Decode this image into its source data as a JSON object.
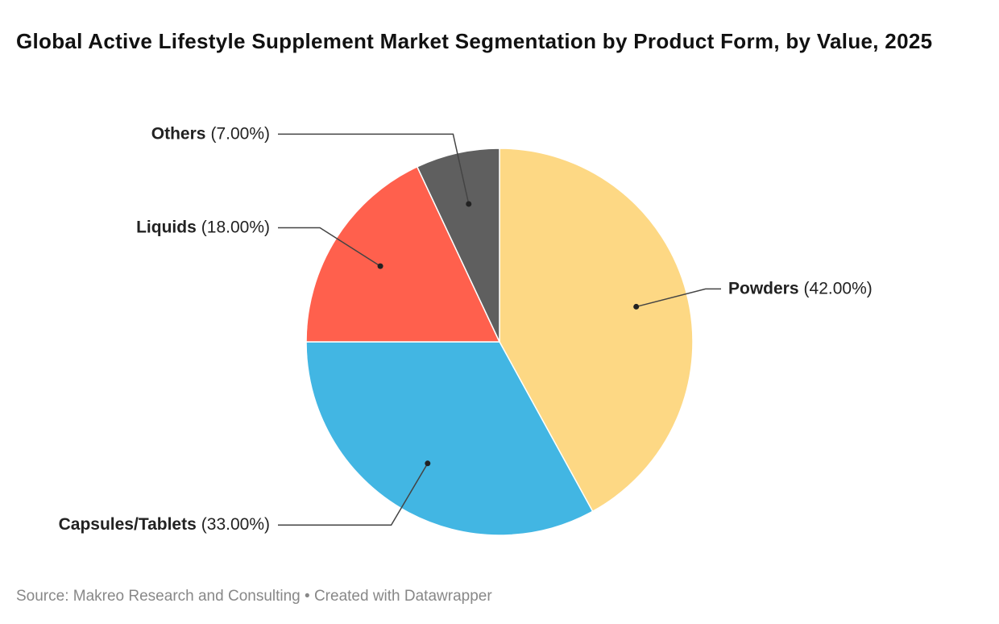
{
  "chart_data": {
    "type": "pie",
    "title": "Global Active Lifestyle Supplement Market Segmentation by Product Form, by Value, 2025",
    "categories": [
      "Powders",
      "Capsules/Tablets",
      "Liquids",
      "Others"
    ],
    "values": [
      42,
      33,
      18,
      7
    ],
    "value_labels": [
      "(42.00%)",
      "(33.00%)",
      "(18.00%)",
      "(7.00%)"
    ],
    "colors": [
      "#fdd884",
      "#42b6e3",
      "#ff604d",
      "#5f5f5f"
    ],
    "source": "Source: Makreo Research and Consulting • Created with Datawrapper"
  }
}
